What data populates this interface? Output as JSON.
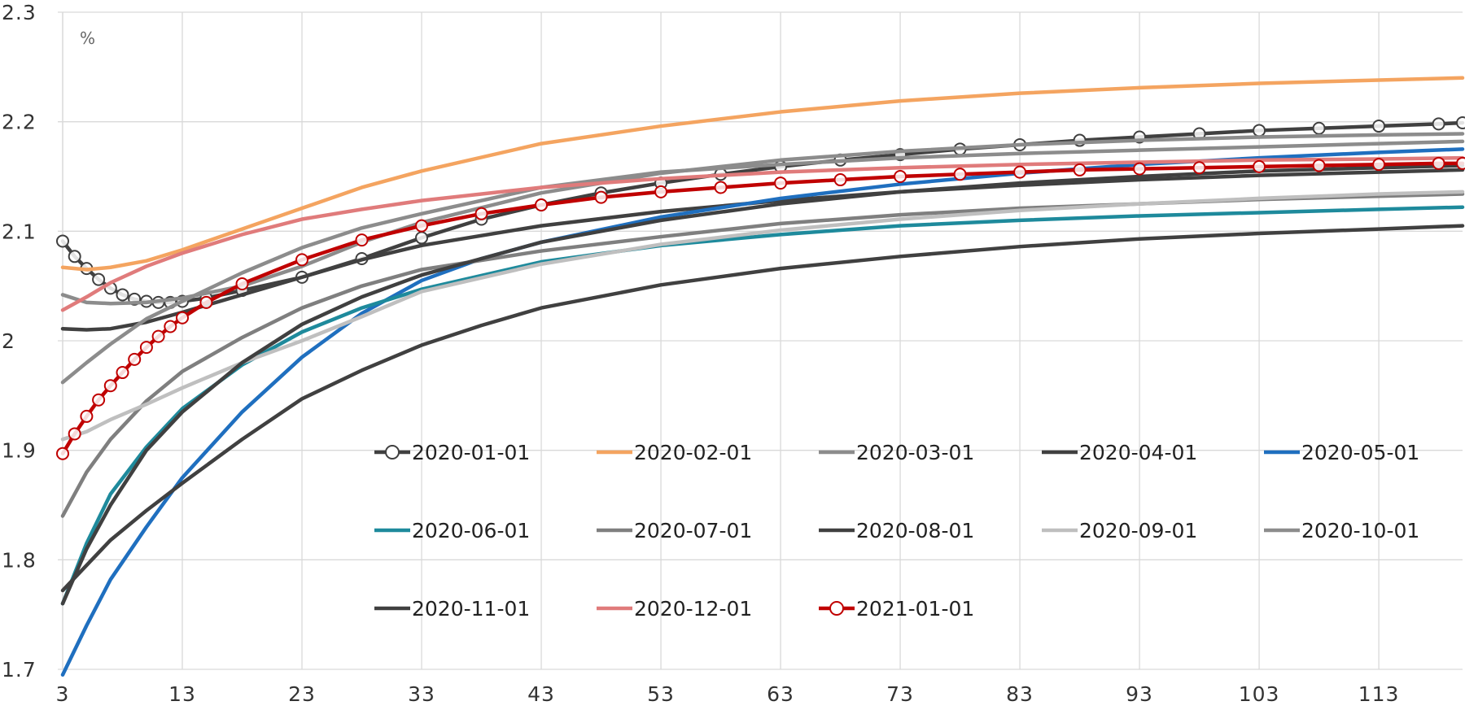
{
  "chart_data": {
    "type": "line",
    "title": "",
    "xlabel": "",
    "ylabel": "",
    "unit_label": "%",
    "xlim": [
      3,
      120
    ],
    "ylim": [
      1.7,
      2.3
    ],
    "x_ticks": [
      3,
      13,
      23,
      33,
      43,
      53,
      63,
      73,
      83,
      93,
      103,
      113
    ],
    "y_ticks": [
      1.7,
      1.8,
      1.9,
      2.0,
      2.1,
      2.2,
      2.3
    ],
    "y_tick_labels": [
      "1.7",
      "1.8",
      "1.9",
      "2",
      "2.1",
      "2.2",
      "2.3"
    ],
    "x_tick_labels": [
      "3",
      "13",
      "23",
      "33",
      "43",
      "53",
      "63",
      "73",
      "83",
      "93",
      "103",
      "113"
    ],
    "grid": true,
    "legend_position": "center-bottom",
    "series": [
      {
        "name": "2020-01-01",
        "color": "#404040",
        "marker": "circle-open",
        "x": [
          3,
          4,
          5,
          6,
          7,
          8,
          9,
          10,
          11,
          12,
          13,
          15,
          18,
          23,
          28,
          33,
          38,
          43,
          48,
          53,
          58,
          63,
          68,
          73,
          78,
          83,
          88,
          93,
          98,
          103,
          108,
          113,
          118,
          120
        ],
        "y": [
          2.091,
          2.077,
          2.066,
          2.056,
          2.048,
          2.042,
          2.038,
          2.036,
          2.035,
          2.035,
          2.036,
          2.039,
          2.046,
          2.058,
          2.075,
          2.094,
          2.111,
          2.124,
          2.135,
          2.144,
          2.152,
          2.159,
          2.165,
          2.17,
          2.175,
          2.179,
          2.183,
          2.186,
          2.189,
          2.192,
          2.194,
          2.196,
          2.198,
          2.199
        ]
      },
      {
        "name": "2020-02-01",
        "color": "#F4A460",
        "marker": "none",
        "x": [
          3,
          5,
          7,
          10,
          13,
          18,
          23,
          28,
          33,
          43,
          53,
          63,
          73,
          83,
          93,
          103,
          113,
          120
        ],
        "y": [
          2.067,
          2.065,
          2.067,
          2.073,
          2.083,
          2.102,
          2.121,
          2.14,
          2.155,
          2.18,
          2.196,
          2.209,
          2.219,
          2.226,
          2.231,
          2.235,
          2.238,
          2.24
        ]
      },
      {
        "name": "2020-03-01",
        "color": "#8C8C8C",
        "marker": "none",
        "x": [
          3,
          5,
          7,
          10,
          13,
          18,
          23,
          28,
          33,
          43,
          53,
          63,
          73,
          83,
          93,
          103,
          113,
          120
        ],
        "y": [
          2.042,
          2.035,
          2.034,
          2.035,
          2.039,
          2.05,
          2.068,
          2.09,
          2.108,
          2.135,
          2.153,
          2.165,
          2.173,
          2.179,
          2.183,
          2.186,
          2.188,
          2.189
        ]
      },
      {
        "name": "2020-04-01",
        "color": "#404040",
        "marker": "none",
        "x": [
          3,
          5,
          7,
          10,
          13,
          18,
          23,
          28,
          33,
          43,
          53,
          63,
          73,
          83,
          93,
          103,
          113,
          120
        ],
        "y": [
          2.011,
          2.01,
          2.011,
          2.017,
          2.026,
          2.042,
          2.058,
          2.074,
          2.087,
          2.105,
          2.118,
          2.128,
          2.136,
          2.142,
          2.147,
          2.151,
          2.154,
          2.156
        ]
      },
      {
        "name": "2020-05-01",
        "color": "#1F6FBF",
        "marker": "none",
        "x": [
          3,
          5,
          7,
          10,
          13,
          18,
          23,
          28,
          33,
          38,
          43,
          53,
          63,
          73,
          83,
          93,
          103,
          113,
          120
        ],
        "y": [
          1.695,
          1.74,
          1.782,
          1.83,
          1.875,
          1.935,
          1.985,
          2.025,
          2.055,
          2.075,
          2.09,
          2.113,
          2.13,
          2.143,
          2.153,
          2.161,
          2.167,
          2.172,
          2.175
        ]
      },
      {
        "name": "2020-06-01",
        "color": "#1E8A9C",
        "marker": "none",
        "x": [
          3,
          5,
          7,
          10,
          13,
          18,
          23,
          28,
          33,
          43,
          53,
          63,
          73,
          83,
          93,
          103,
          113,
          120
        ],
        "y": [
          1.76,
          1.815,
          1.86,
          1.903,
          1.938,
          1.978,
          2.008,
          2.03,
          2.047,
          2.072,
          2.087,
          2.097,
          2.105,
          2.11,
          2.114,
          2.117,
          2.12,
          2.122
        ]
      },
      {
        "name": "2020-07-01",
        "color": "#7F7F7F",
        "marker": "none",
        "x": [
          3,
          5,
          7,
          10,
          13,
          18,
          23,
          28,
          33,
          43,
          53,
          63,
          73,
          83,
          93,
          103,
          113,
          120
        ],
        "y": [
          1.84,
          1.88,
          1.91,
          1.945,
          1.972,
          2.003,
          2.03,
          2.05,
          2.065,
          2.082,
          2.095,
          2.107,
          2.115,
          2.121,
          2.125,
          2.129,
          2.132,
          2.134
        ]
      },
      {
        "name": "2020-08-01",
        "color": "#404040",
        "marker": "none",
        "x": [
          3,
          5,
          7,
          10,
          13,
          18,
          23,
          28,
          33,
          38,
          43,
          53,
          63,
          73,
          83,
          93,
          103,
          113,
          120
        ],
        "y": [
          1.772,
          1.795,
          1.818,
          1.845,
          1.87,
          1.91,
          1.947,
          1.973,
          1.996,
          2.014,
          2.03,
          2.051,
          2.066,
          2.077,
          2.086,
          2.093,
          2.098,
          2.102,
          2.105
        ]
      },
      {
        "name": "2020-09-01",
        "color": "#BFBFBF",
        "marker": "none",
        "x": [
          3,
          5,
          7,
          10,
          13,
          18,
          23,
          28,
          33,
          43,
          53,
          63,
          73,
          83,
          93,
          103,
          113,
          120
        ],
        "y": [
          1.91,
          1.917,
          1.928,
          1.942,
          1.957,
          1.98,
          2.0,
          2.022,
          2.045,
          2.07,
          2.088,
          2.101,
          2.111,
          2.119,
          2.125,
          2.13,
          2.134,
          2.136
        ]
      },
      {
        "name": "2020-10-01",
        "color": "#8C8C8C",
        "marker": "none",
        "x": [
          3,
          5,
          7,
          10,
          13,
          18,
          23,
          28,
          33,
          43,
          53,
          63,
          73,
          83,
          93,
          103,
          113,
          120
        ],
        "y": [
          1.962,
          1.98,
          1.997,
          2.02,
          2.036,
          2.062,
          2.085,
          2.103,
          2.116,
          2.14,
          2.154,
          2.161,
          2.167,
          2.171,
          2.174,
          2.177,
          2.18,
          2.182
        ]
      },
      {
        "name": "2020-11-01",
        "color": "#404040",
        "marker": "none",
        "x": [
          3,
          5,
          7,
          10,
          13,
          18,
          23,
          28,
          33,
          43,
          53,
          63,
          73,
          83,
          93,
          103,
          113,
          120
        ],
        "y": [
          1.76,
          1.81,
          1.85,
          1.9,
          1.935,
          1.98,
          2.015,
          2.04,
          2.06,
          2.09,
          2.11,
          2.125,
          2.136,
          2.144,
          2.15,
          2.155,
          2.158,
          2.16
        ]
      },
      {
        "name": "2020-12-01",
        "color": "#E07B7B",
        "marker": "none",
        "x": [
          3,
          5,
          7,
          10,
          13,
          18,
          23,
          28,
          33,
          43,
          53,
          63,
          73,
          83,
          93,
          103,
          113,
          120
        ],
        "y": [
          2.028,
          2.04,
          2.053,
          2.068,
          2.08,
          2.097,
          2.111,
          2.12,
          2.128,
          2.14,
          2.148,
          2.154,
          2.158,
          2.161,
          2.163,
          2.165,
          2.166,
          2.167
        ]
      },
      {
        "name": "2021-01-01",
        "color": "#C00000",
        "marker": "circle-open",
        "x": [
          3,
          4,
          5,
          6,
          7,
          8,
          9,
          10,
          11,
          12,
          13,
          15,
          18,
          23,
          28,
          33,
          38,
          43,
          48,
          53,
          58,
          63,
          68,
          73,
          78,
          83,
          88,
          93,
          98,
          103,
          108,
          113,
          118,
          120
        ],
        "y": [
          1.897,
          1.915,
          1.931,
          1.946,
          1.959,
          1.971,
          1.983,
          1.994,
          2.004,
          2.013,
          2.021,
          2.035,
          2.052,
          2.074,
          2.092,
          2.105,
          2.116,
          2.124,
          2.131,
          2.136,
          2.14,
          2.144,
          2.147,
          2.15,
          2.152,
          2.154,
          2.156,
          2.157,
          2.158,
          2.159,
          2.16,
          2.161,
          2.162,
          2.162
        ]
      }
    ]
  }
}
